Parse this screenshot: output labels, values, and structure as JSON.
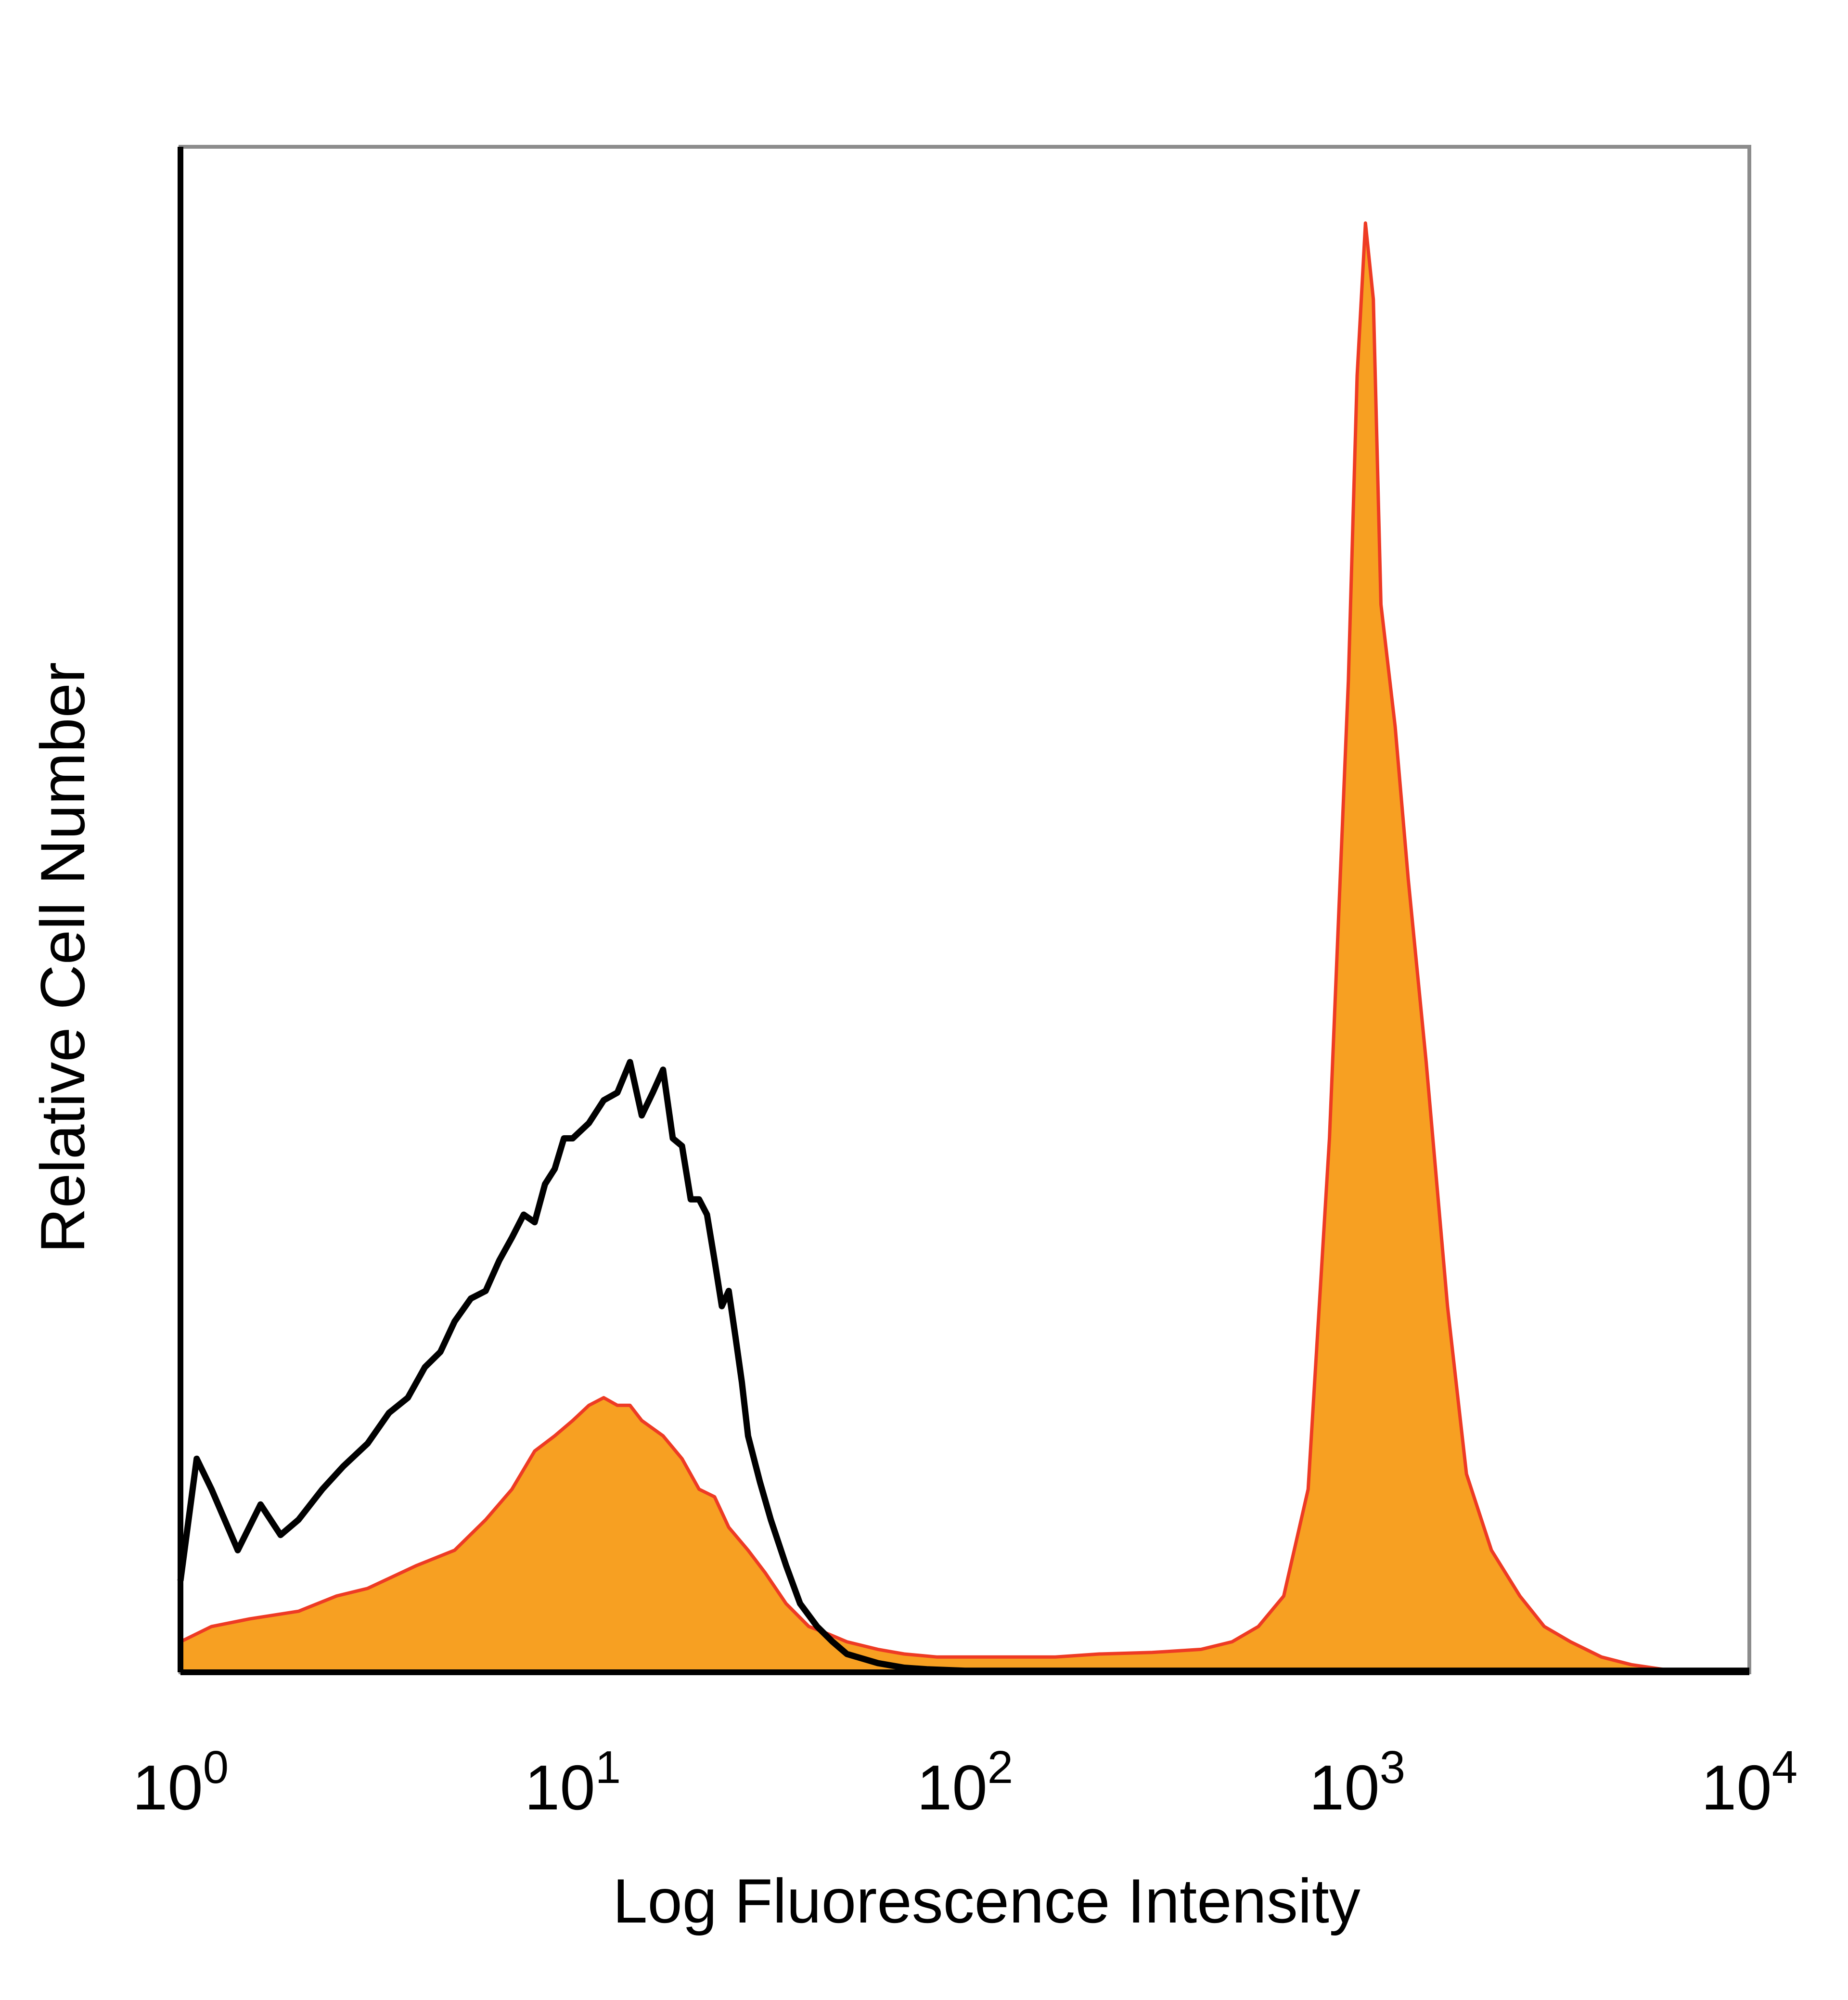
{
  "chart_data": {
    "type": "area",
    "xlabel": "Log Fluorescence Intensity",
    "ylabel": "Relative Cell Number",
    "xscale": "log",
    "xlim": [
      1,
      10000
    ],
    "ylim": [
      0,
      100
    ],
    "grid": false,
    "legend": "none",
    "x_ticks": [
      {
        "base": "10",
        "exp": "0"
      },
      {
        "base": "10",
        "exp": "1"
      },
      {
        "base": "10",
        "exp": "2"
      },
      {
        "base": "10",
        "exp": "3"
      },
      {
        "base": "10",
        "exp": "4"
      }
    ],
    "series": [
      {
        "style": "filled",
        "fill_color": "#f7a022",
        "line_color": "#ee3b24",
        "x": [
          1.0,
          1.2,
          1.5,
          2.0,
          2.5,
          3.0,
          4.0,
          5.0,
          6.0,
          7.0,
          8.0,
          9.0,
          10.0,
          11.0,
          12.0,
          13.0,
          14.0,
          15.0,
          17.0,
          19.0,
          21.0,
          23.0,
          25.0,
          28.0,
          31.0,
          35.0,
          40.0,
          45.0,
          50.0,
          60.0,
          70.0,
          85.0,
          100.0,
          130.0,
          170.0,
          220.0,
          300.0,
          400.0,
          480.0,
          560.0,
          650.0,
          750.0,
          850.0,
          950.0,
          1000.0,
          1050.0,
          1100.0,
          1150.0,
          1250.0,
          1350.0,
          1500.0,
          1700.0,
          1900.0,
          2200.0,
          2600.0,
          3000.0,
          3500.0,
          4200.0,
          5000.0,
          6000.0
        ],
        "y": [
          2.0,
          3.0,
          3.5,
          4.0,
          5.0,
          5.5,
          7.0,
          8.0,
          10.0,
          12.0,
          14.5,
          15.5,
          16.5,
          17.5,
          18.0,
          17.5,
          17.5,
          16.5,
          15.5,
          14.0,
          12.0,
          11.5,
          9.5,
          8.0,
          6.5,
          4.5,
          3.0,
          2.5,
          2.0,
          1.5,
          1.2,
          1.0,
          1.0,
          1.0,
          1.0,
          1.2,
          1.3,
          1.5,
          2.0,
          3.0,
          5.0,
          12.0,
          35.0,
          65.0,
          85.0,
          95.0,
          90.0,
          70.0,
          62.0,
          52.0,
          40.0,
          24.0,
          13.0,
          8.0,
          5.0,
          3.0,
          2.0,
          1.0,
          0.5,
          0.2
        ]
      },
      {
        "style": "outline",
        "line_color": "#000000",
        "x": [
          1.0,
          1.1,
          1.2,
          1.4,
          1.6,
          1.8,
          2.0,
          2.3,
          2.6,
          3.0,
          3.4,
          3.8,
          4.2,
          4.6,
          5.0,
          5.5,
          6.0,
          6.5,
          7.0,
          7.5,
          8.0,
          8.5,
          9.0,
          9.5,
          10.0,
          11.0,
          12.0,
          13.0,
          14.0,
          15.0,
          16.0,
          17.0,
          18.0,
          19.0,
          20.0,
          21.0,
          22.0,
          23.0,
          24.0,
          25.0,
          26.0,
          27.0,
          28.0,
          30.0,
          32.0,
          35.0,
          38.0,
          42.0,
          46.0,
          50.0,
          60.0,
          70.0,
          80.0,
          100.0,
          150.0,
          200.0,
          400.0,
          1000.0,
          3000.0,
          10000.0
        ],
        "y": [
          6.0,
          14.0,
          12.0,
          8.0,
          11.0,
          9.0,
          10.0,
          12.0,
          13.5,
          15.0,
          17.0,
          18.0,
          20.0,
          21.0,
          23.0,
          24.5,
          25.0,
          27.0,
          28.5,
          30.0,
          29.5,
          32.0,
          33.0,
          35.0,
          35.0,
          36.0,
          37.5,
          38.0,
          40.0,
          36.5,
          38.0,
          39.5,
          35.0,
          34.5,
          31.0,
          31.0,
          30.0,
          27.0,
          24.0,
          25.0,
          22.0,
          19.0,
          15.5,
          12.5,
          10.0,
          7.0,
          4.5,
          3.0,
          2.0,
          1.2,
          0.6,
          0.3,
          0.2,
          0.1,
          0.1,
          0.1,
          0.1,
          0.1,
          0.1,
          0.1
        ]
      }
    ]
  }
}
